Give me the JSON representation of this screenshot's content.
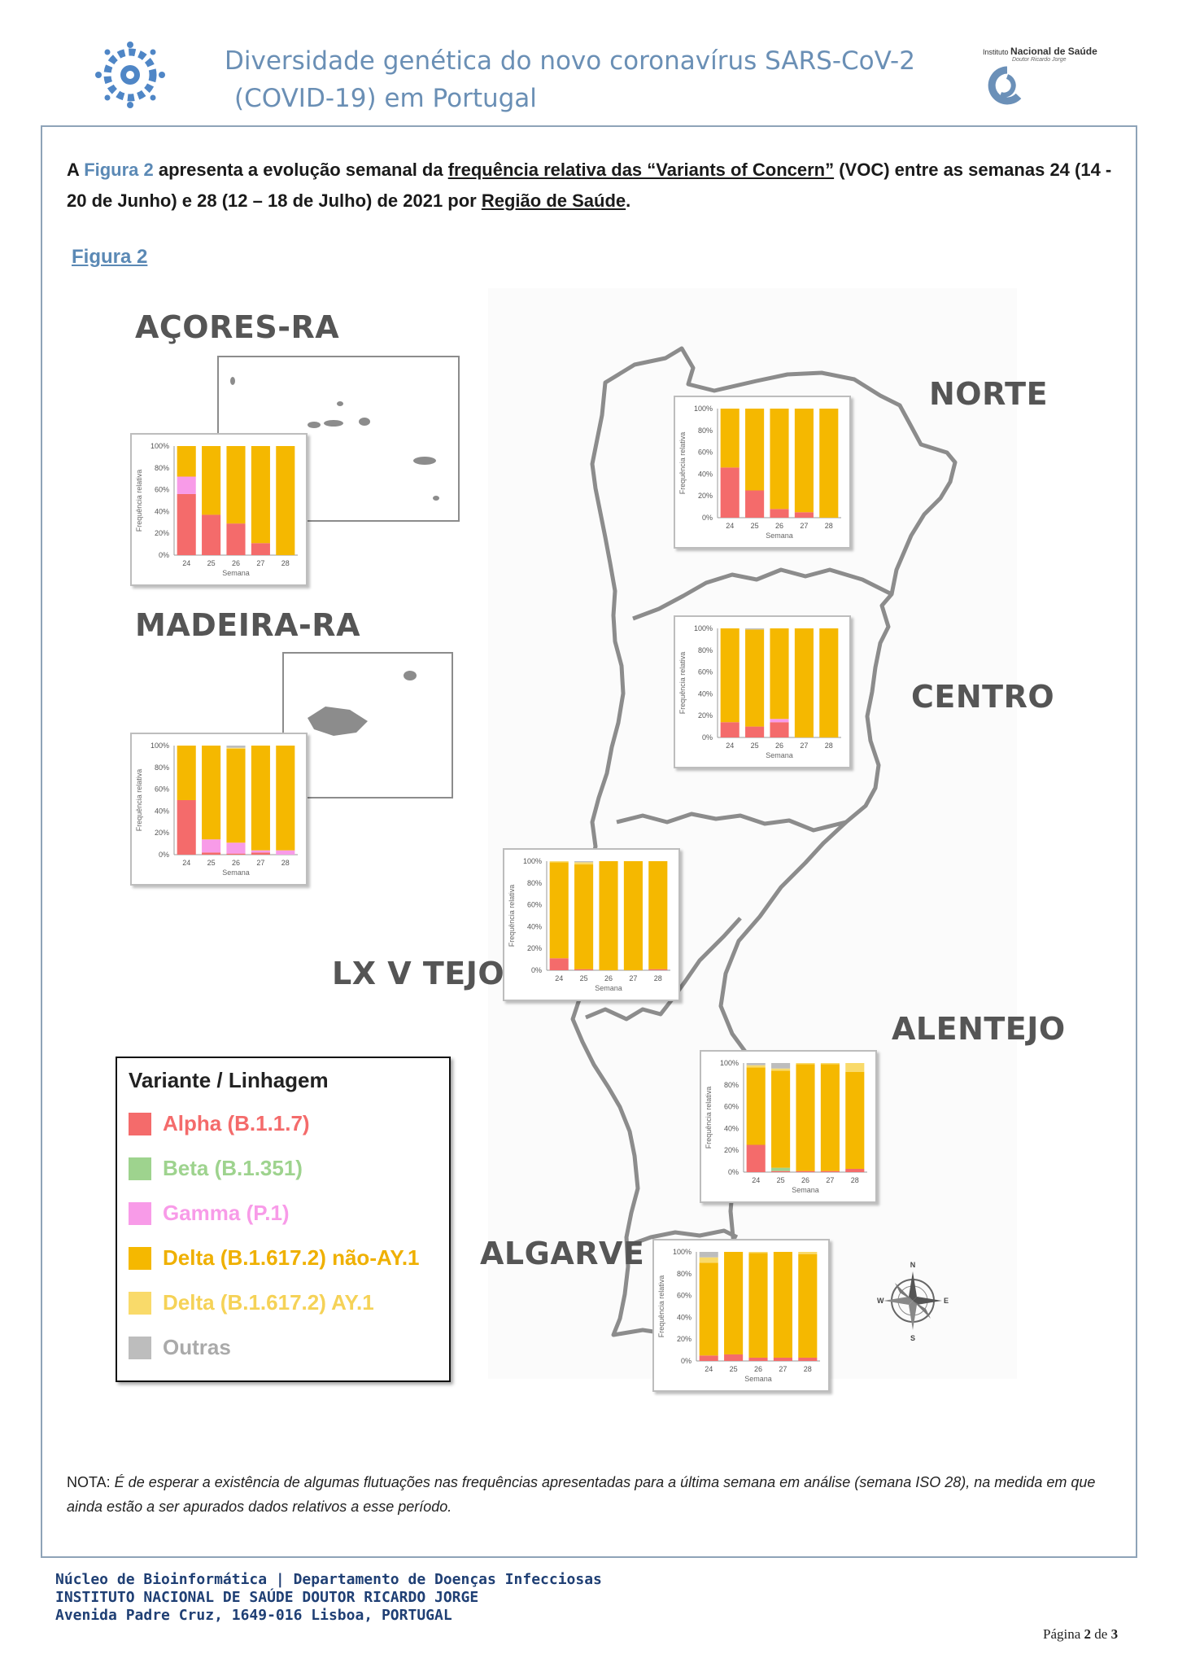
{
  "header": {
    "title_line1": "Diversidade genética do novo coronavírus SARS-CoV-2",
    "title_line2": "(COVID-19) em Portugal",
    "logo_left_icon": "virus-logo-icon",
    "logo_right_institute": "Instituto",
    "logo_right_name": "Nacional de Saúde",
    "logo_right_sub": "Doutor Ricardo Jorge"
  },
  "intro": {
    "part1": "A ",
    "figura": "Figura 2",
    "part2": " apresenta a evolução semanal da ",
    "freq": "frequência relativa das “Variants of Concern”",
    "part3": " (VOC) entre as semanas 24 (14 - 20 de Junho) e 28 (12 – 18 de Julho) de 2021 por ",
    "regiao": "Região de Saúde",
    "part4": "."
  },
  "figure_label": "Figura 2",
  "regions": {
    "acores": "AÇORES-RA",
    "madeira": "MADEIRA-RA",
    "norte": "NORTE",
    "centro": "CENTRO",
    "lxvtejo": "LX V TEJO",
    "alentejo": "ALENTEJO",
    "algarve": "ALGARVE"
  },
  "legend": {
    "title": "Variante / Linhagem",
    "items": [
      {
        "label": "Alpha (B.1.1.7)",
        "color": "#f46b6b"
      },
      {
        "label": "Beta (B.1.351)",
        "color": "#9ed38e"
      },
      {
        "label": "Gamma (P.1)",
        "color": "#f89be8"
      },
      {
        "label": "Delta (B.1.617.2) não-AY.1",
        "color": "#f5b800"
      },
      {
        "label": "Delta (B.1.617.2) AY.1",
        "color": "#f9da6a"
      },
      {
        "label": "Outras",
        "color": "#bdbdbd"
      }
    ]
  },
  "compass": {
    "n": "N",
    "s": "S",
    "e": "E",
    "w": "W"
  },
  "chart_data": [
    {
      "type": "bar",
      "region": "AÇORES-RA",
      "ylabel": "Frequência relativa",
      "xlabel": "Semana",
      "categories": [
        "24",
        "25",
        "26",
        "27",
        "28"
      ],
      "yticks": [
        "0%",
        "20%",
        "40%",
        "60%",
        "80%",
        "100%"
      ],
      "ylim": [
        0,
        100
      ],
      "stacked": true,
      "series": [
        {
          "name": "Alpha (B.1.1.7)",
          "values": [
            56,
            37,
            29,
            11,
            0
          ]
        },
        {
          "name": "Beta (B.1.351)",
          "values": [
            0,
            0,
            0,
            0,
            0
          ]
        },
        {
          "name": "Gamma (P.1)",
          "values": [
            16,
            0,
            0,
            0,
            0
          ]
        },
        {
          "name": "Delta (B.1.617.2) não-AY.1",
          "values": [
            28,
            63,
            71,
            89,
            100
          ]
        },
        {
          "name": "Delta (B.1.617.2) AY.1",
          "values": [
            0,
            0,
            0,
            0,
            0
          ]
        },
        {
          "name": "Outras",
          "values": [
            0,
            0,
            0,
            0,
            0
          ]
        }
      ]
    },
    {
      "type": "bar",
      "region": "MADEIRA-RA",
      "ylabel": "Frequência relativa",
      "xlabel": "Semana",
      "categories": [
        "24",
        "25",
        "26",
        "27",
        "28"
      ],
      "yticks": [
        "0%",
        "20%",
        "40%",
        "60%",
        "80%",
        "100%"
      ],
      "ylim": [
        0,
        100
      ],
      "stacked": true,
      "series": [
        {
          "name": "Alpha (B.1.1.7)",
          "values": [
            50,
            2,
            1,
            2,
            0
          ]
        },
        {
          "name": "Beta (B.1.351)",
          "values": [
            0,
            0,
            0,
            0,
            0
          ]
        },
        {
          "name": "Gamma (P.1)",
          "values": [
            0,
            12,
            10,
            2,
            4
          ]
        },
        {
          "name": "Delta (B.1.617.2) não-AY.1",
          "values": [
            50,
            86,
            86,
            96,
            96
          ]
        },
        {
          "name": "Delta (B.1.617.2) AY.1",
          "values": [
            0,
            0,
            1,
            0,
            0
          ]
        },
        {
          "name": "Outras",
          "values": [
            0,
            0,
            2,
            0,
            0
          ]
        }
      ]
    },
    {
      "type": "bar",
      "region": "NORTE",
      "ylabel": "Frequência relativa",
      "xlabel": "Semana",
      "categories": [
        "24",
        "25",
        "26",
        "27",
        "28"
      ],
      "yticks": [
        "0%",
        "20%",
        "40%",
        "60%",
        "80%",
        "100%"
      ],
      "ylim": [
        0,
        100
      ],
      "stacked": true,
      "series": [
        {
          "name": "Alpha (B.1.1.7)",
          "values": [
            46,
            25,
            8,
            5,
            0
          ]
        },
        {
          "name": "Beta (B.1.351)",
          "values": [
            0,
            0,
            0,
            0,
            0
          ]
        },
        {
          "name": "Gamma (P.1)",
          "values": [
            0,
            0,
            0,
            0,
            0
          ]
        },
        {
          "name": "Delta (B.1.617.2) não-AY.1",
          "values": [
            54,
            75,
            92,
            95,
            100
          ]
        },
        {
          "name": "Delta (B.1.617.2) AY.1",
          "values": [
            0,
            0,
            0,
            0,
            0
          ]
        },
        {
          "name": "Outras",
          "values": [
            0,
            0,
            0,
            0,
            0
          ]
        }
      ]
    },
    {
      "type": "bar",
      "region": "CENTRO",
      "ylabel": "Frequência relativa",
      "xlabel": "Semana",
      "categories": [
        "24",
        "25",
        "26",
        "27",
        "28"
      ],
      "yticks": [
        "0%",
        "20%",
        "40%",
        "60%",
        "80%",
        "100%"
      ],
      "ylim": [
        0,
        100
      ],
      "stacked": true,
      "series": [
        {
          "name": "Alpha (B.1.1.7)",
          "values": [
            14,
            10,
            14,
            0,
            0
          ]
        },
        {
          "name": "Beta (B.1.351)",
          "values": [
            0,
            0,
            0,
            0,
            0
          ]
        },
        {
          "name": "Gamma (P.1)",
          "values": [
            0,
            0,
            3,
            0,
            0
          ]
        },
        {
          "name": "Delta (B.1.617.2) não-AY.1",
          "values": [
            86,
            89,
            83,
            100,
            100
          ]
        },
        {
          "name": "Delta (B.1.617.2) AY.1",
          "values": [
            0,
            0,
            0,
            0,
            0
          ]
        },
        {
          "name": "Outras",
          "values": [
            0,
            1,
            0,
            0,
            0
          ]
        }
      ]
    },
    {
      "type": "bar",
      "region": "LX V TEJO",
      "ylabel": "Frequência relativa",
      "xlabel": "Semana",
      "categories": [
        "24",
        "25",
        "26",
        "27",
        "28"
      ],
      "yticks": [
        "0%",
        "20%",
        "40%",
        "60%",
        "80%",
        "100%"
      ],
      "ylim": [
        0,
        100
      ],
      "stacked": true,
      "series": [
        {
          "name": "Alpha (B.1.1.7)",
          "values": [
            11,
            1,
            0,
            0,
            1
          ]
        },
        {
          "name": "Beta (B.1.351)",
          "values": [
            0,
            0,
            0,
            0,
            0
          ]
        },
        {
          "name": "Gamma (P.1)",
          "values": [
            0,
            0,
            0,
            0,
            0
          ]
        },
        {
          "name": "Delta (B.1.617.2) não-AY.1",
          "values": [
            88,
            96,
            100,
            100,
            99
          ]
        },
        {
          "name": "Delta (B.1.617.2) AY.1",
          "values": [
            1,
            2,
            0,
            0,
            0
          ]
        },
        {
          "name": "Outras",
          "values": [
            0,
            1,
            0,
            0,
            0
          ]
        }
      ]
    },
    {
      "type": "bar",
      "region": "ALENTEJO",
      "ylabel": "Frequência relativa",
      "xlabel": "Semana",
      "categories": [
        "24",
        "25",
        "26",
        "27",
        "28"
      ],
      "yticks": [
        "0%",
        "20%",
        "40%",
        "60%",
        "80%",
        "100%"
      ],
      "ylim": [
        0,
        100
      ],
      "stacked": true,
      "series": [
        {
          "name": "Alpha (B.1.1.7)",
          "values": [
            25,
            1,
            1,
            1,
            3
          ]
        },
        {
          "name": "Beta (B.1.351)",
          "values": [
            0,
            3,
            0,
            0,
            0
          ]
        },
        {
          "name": "Gamma (P.1)",
          "values": [
            0,
            0,
            0,
            0,
            0
          ]
        },
        {
          "name": "Delta (B.1.617.2) não-AY.1",
          "values": [
            71,
            89,
            98,
            98,
            89
          ]
        },
        {
          "name": "Delta (B.1.617.2) AY.1",
          "values": [
            2,
            2,
            1,
            1,
            8
          ]
        },
        {
          "name": "Outras",
          "values": [
            2,
            5,
            0,
            0,
            0
          ]
        }
      ]
    },
    {
      "type": "bar",
      "region": "ALGARVE",
      "ylabel": "Frequência relativa",
      "xlabel": "Semana",
      "categories": [
        "24",
        "25",
        "26",
        "27",
        "28"
      ],
      "yticks": [
        "0%",
        "20%",
        "40%",
        "60%",
        "80%",
        "100%"
      ],
      "ylim": [
        0,
        100
      ],
      "stacked": true,
      "series": [
        {
          "name": "Alpha (B.1.1.7)",
          "values": [
            5,
            6,
            3,
            3,
            3
          ]
        },
        {
          "name": "Beta (B.1.351)",
          "values": [
            0,
            0,
            0,
            0,
            0
          ]
        },
        {
          "name": "Gamma (P.1)",
          "values": [
            0,
            0,
            0,
            0,
            0
          ]
        },
        {
          "name": "Delta (B.1.617.2) não-AY.1",
          "values": [
            85,
            94,
            96,
            97,
            95
          ]
        },
        {
          "name": "Delta (B.1.617.2) AY.1",
          "values": [
            5,
            0,
            1,
            0,
            2
          ]
        },
        {
          "name": "Outras",
          "values": [
            5,
            0,
            0,
            0,
            0
          ]
        }
      ]
    }
  ],
  "nota": {
    "prefix": "NOTA: ",
    "text": "É de esperar a existência de algumas flutuações nas frequências apresentadas para a última semana em análise (semana ISO 28), na medida em que ainda estão a ser apurados dados relativos a esse período."
  },
  "footer": {
    "line1": "Núcleo de Bioinformática | Departamento de Doenças Infecciosas",
    "line2": "INSTITUTO NACIONAL DE SAÚDE DOUTOR RICARDO JORGE",
    "line3": "Avenida Padre Cruz, 1649-016 Lisboa, PORTUGAL"
  },
  "page": {
    "pagina": "Página",
    "current": "2",
    "de": "de",
    "total": "3"
  }
}
